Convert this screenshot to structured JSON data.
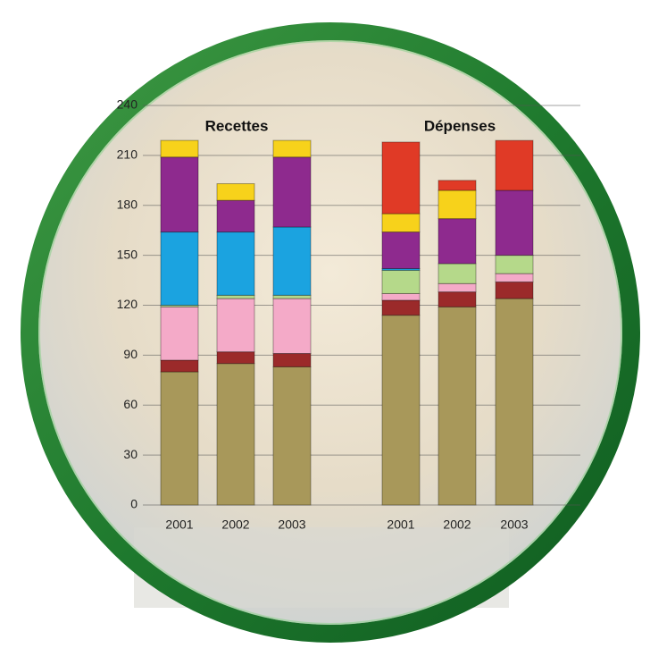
{
  "chart_data": {
    "type": "stacked-bar",
    "groups": [
      "Recettes",
      "Dépenses"
    ],
    "categories": [
      "2001",
      "2002",
      "2003",
      "2001",
      "2002",
      "2003"
    ],
    "series": [
      {
        "color": "#a8985a",
        "values": [
          80,
          85,
          83,
          114,
          119,
          124
        ]
      },
      {
        "color": "#9b2a2a",
        "values": [
          7,
          7,
          8,
          9,
          9,
          10
        ]
      },
      {
        "color": "#f4aac8",
        "values": [
          32,
          32,
          33,
          4,
          5,
          5
        ]
      },
      {
        "color": "#b5d98a",
        "values": [
          1,
          2,
          2,
          14,
          12,
          11
        ]
      },
      {
        "color": "#1ba3e0",
        "values": [
          44,
          38,
          41,
          1,
          null,
          null
        ]
      },
      {
        "color": "#8e2a8e",
        "values": [
          45,
          19,
          42,
          22,
          27,
          39
        ]
      },
      {
        "color": "#f7d21b",
        "values": [
          10,
          10,
          10,
          11,
          17,
          null
        ]
      },
      {
        "color": "#e03a26",
        "values": [
          null,
          null,
          null,
          43,
          6,
          30
        ]
      }
    ],
    "ylim": [
      0,
      240
    ],
    "yticks": [
      0,
      30,
      60,
      90,
      120,
      150,
      180,
      210,
      240
    ],
    "grid": true
  }
}
